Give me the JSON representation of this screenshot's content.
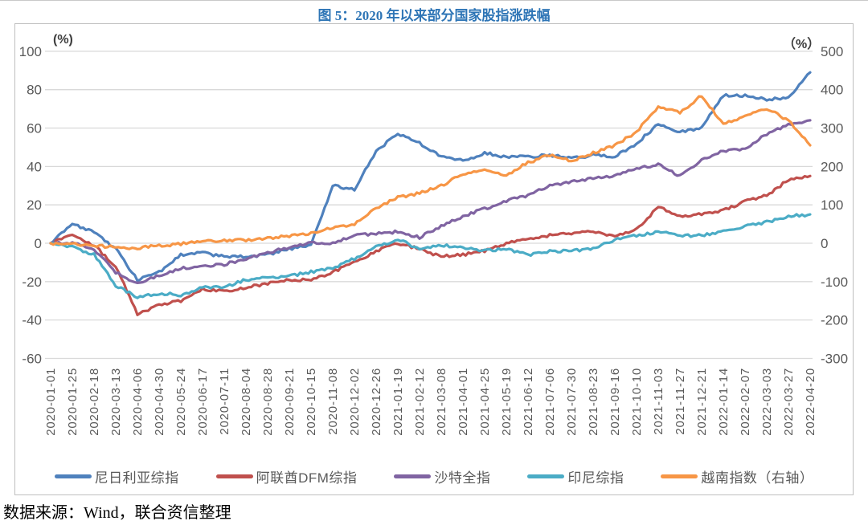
{
  "title": "图 5：2020 年以来部分国家股指涨跌幅",
  "source_note": "数据来源：Wind，联合资信整理",
  "chart_data": {
    "type": "line",
    "title": "图 5：2020 年以来部分国家股指涨跌幅",
    "grid": "horizontal-only",
    "legend_position": "bottom",
    "left_axis": {
      "unit": "(%)",
      "min": -60,
      "max": 100,
      "ticks": [
        100,
        80,
        60,
        40,
        20,
        0,
        -20,
        -40,
        -60
      ]
    },
    "right_axis": {
      "unit": "（%）",
      "min": -300,
      "max": 500,
      "ticks": [
        500,
        400,
        300,
        200,
        100,
        0,
        -100,
        -200,
        -300
      ]
    },
    "x_labels": [
      "2020-01-01",
      "2020-01-25",
      "2020-02-18",
      "2020-03-13",
      "2020-04-06",
      "2020-04-30",
      "2020-05-24",
      "2020-06-17",
      "2020-07-11",
      "2020-08-04",
      "2020-08-28",
      "2020-09-21",
      "2020-10-15",
      "2020-11-08",
      "2020-12-02",
      "2020-12-26",
      "2021-01-19",
      "2021-02-12",
      "2021-03-08",
      "2021-04-01",
      "2021-04-25",
      "2021-05-19",
      "2021-06-12",
      "2021-07-06",
      "2021-07-30",
      "2021-08-23",
      "2021-09-16",
      "2021-10-10",
      "2021-11-03",
      "2021-11-27",
      "2021-12-21",
      "2022-01-14",
      "2022-02-07",
      "2022-03-03",
      "2022-03-27",
      "2022-04-20"
    ],
    "series": [
      {
        "name": "尼日利亚综指",
        "axis": "left",
        "color": "#4F81BD",
        "values": [
          0,
          10,
          6,
          -3,
          -19,
          -15,
          -6,
          -5,
          -7,
          -7,
          -6,
          -3,
          -1,
          30,
          28,
          48,
          57,
          52,
          45,
          43,
          47,
          45,
          45,
          46,
          44,
          46,
          45,
          52,
          62,
          58,
          60,
          77,
          77,
          75,
          76,
          89
        ]
      },
      {
        "name": "阿联酋DFM综指",
        "axis": "left",
        "color": "#C0504D",
        "values": [
          0,
          4,
          -1,
          -12,
          -37,
          -32,
          -30,
          -24,
          -25,
          -23,
          -21,
          -19,
          -19,
          -15,
          -10,
          -4,
          0,
          -3,
          -7,
          -6,
          -4,
          0,
          2,
          4,
          5,
          6,
          4,
          7,
          19,
          14,
          15,
          17,
          22,
          25,
          33,
          35
        ]
      },
      {
        "name": "沙特全指",
        "axis": "left",
        "color": "#8064A2",
        "values": [
          0,
          0,
          -3,
          -15,
          -21,
          -17,
          -13,
          -12,
          -11,
          -8,
          -5,
          -2,
          0,
          0,
          4,
          5,
          6,
          3,
          9,
          14,
          18,
          22,
          25,
          30,
          32,
          34,
          35,
          39,
          41,
          35,
          43,
          48,
          49,
          57,
          62,
          64
        ]
      },
      {
        "name": "印尼综指",
        "axis": "left",
        "color": "#4BACC6",
        "values": [
          0,
          -2,
          -6,
          -22,
          -28,
          -26,
          -27,
          -23,
          -23,
          -19,
          -18,
          -17,
          -15,
          -13,
          -8,
          -2,
          2,
          -3,
          -1,
          -2,
          -4,
          -3,
          -6,
          -4,
          -4,
          -3,
          2,
          4,
          6,
          4,
          4,
          6,
          9,
          11,
          14,
          15
        ]
      },
      {
        "name": "越南指数（右轴）",
        "axis": "right",
        "color": "#F79646",
        "values": [
          0,
          -2,
          -6,
          -10,
          -13,
          -6,
          -2,
          4,
          8,
          8,
          14,
          18,
          25,
          40,
          50,
          90,
          120,
          130,
          150,
          180,
          190,
          178,
          210,
          230,
          215,
          235,
          255,
          290,
          355,
          340,
          385,
          310,
          330,
          350,
          320,
          255
        ]
      }
    ],
    "styles": {
      "gridline_color": "#d9d9d9",
      "axis_text_color": "#595959",
      "frame_color": "#bfbfbf",
      "title_color": "#2E75B6"
    }
  }
}
